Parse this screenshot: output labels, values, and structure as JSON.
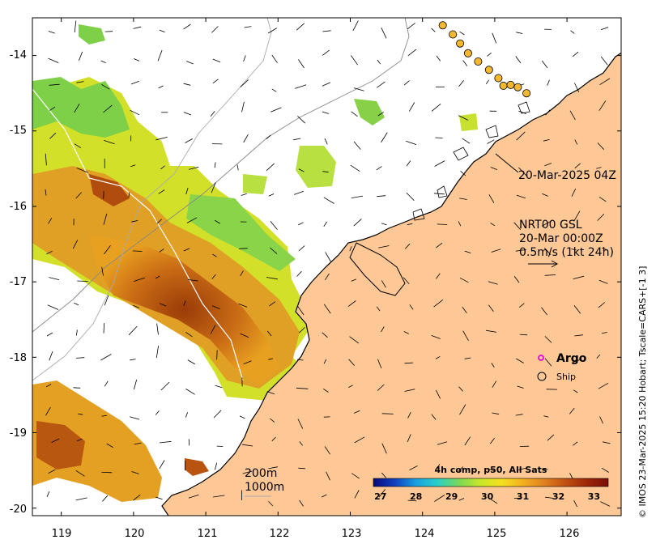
{
  "map": {
    "x_range": [
      118.6,
      126.75
    ],
    "y_range": [
      -20.1,
      -13.5
    ],
    "x_ticks": [
      119,
      120,
      121,
      122,
      123,
      124,
      125,
      126
    ],
    "y_ticks": [
      -14,
      -15,
      -16,
      -17,
      -18,
      -19,
      -20
    ],
    "x_tick_labels": [
      "119",
      "120",
      "121",
      "122",
      "123",
      "124",
      "125",
      "126"
    ],
    "y_tick_labels": [
      "-14",
      "-15",
      "-16",
      "-17",
      "-18",
      "-19",
      "-20"
    ],
    "land_color": "#fdc895",
    "no_data_color": "#ffffff"
  },
  "annotations": {
    "ship_time": "20-Mar-2025 04Z",
    "product": "NRT00 GSL",
    "date": "20-Mar 00:00Z",
    "scale": "0.5m/s (1kt 24h)",
    "depth_200": "200m",
    "depth_1000": "1000m"
  },
  "legend": {
    "argo_label": "Argo",
    "argo_color": "#e000e0",
    "ship_label": "Ship"
  },
  "colorbar": {
    "title": "4h comp, p50, All Sats",
    "ticks": [
      "27",
      "28",
      "29",
      "30",
      "31",
      "32",
      "33"
    ],
    "range": [
      26.8,
      33.4
    ],
    "stops": [
      "#0a0a7a",
      "#1040c0",
      "#1aa0e0",
      "#28d0c8",
      "#7ad858",
      "#c8e828",
      "#f4e020",
      "#f4b020",
      "#e08020",
      "#c05010",
      "#9c2808",
      "#7a0c08"
    ]
  },
  "credit": "© IMOS 23-Mar-2025 15:20 Hobart; Tscale=CARS+[-1 3]",
  "track": {
    "lons": [
      124.28,
      124.42,
      124.52,
      124.63,
      124.77,
      124.92,
      125.05,
      125.12,
      125.22,
      125.32,
      125.44
    ],
    "lats": [
      -13.6,
      -13.72,
      -13.84,
      -13.97,
      -14.08,
      -14.19,
      -14.3,
      -14.4,
      -14.39,
      -14.42,
      -14.5
    ],
    "color": "#f4b830"
  }
}
